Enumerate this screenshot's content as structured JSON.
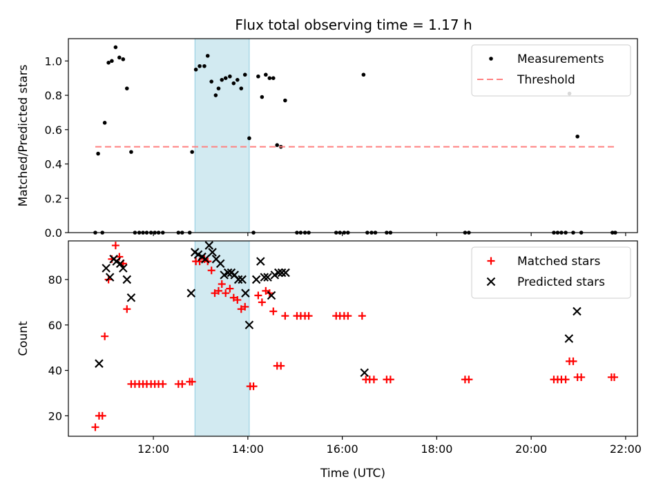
{
  "chart_data": [
    {
      "type": "scatter",
      "title": "Flux total observing time = 1.17 h",
      "ylabel": "Matched/Predicted stars",
      "xlabel": "",
      "x_unit": "hours (UTC)",
      "xlim": [
        10.2,
        22.25
      ],
      "ylim": [
        0.0,
        1.13
      ],
      "yticks": [
        "0.0",
        "0.2",
        "0.4",
        "0.6",
        "0.8",
        "1.0"
      ],
      "legend_position": "top-right",
      "shaded_interval": {
        "start": 12.88,
        "end": 14.03,
        "color": "#add8e6"
      },
      "series": [
        {
          "name": "Measurements",
          "marker": "dot",
          "color": "#000000",
          "points": [
            [
              10.77,
              0.0
            ],
            [
              10.83,
              0.46
            ],
            [
              10.92,
              0.0
            ],
            [
              10.97,
              0.64
            ],
            [
              11.05,
              0.99
            ],
            [
              11.12,
              1.0
            ],
            [
              11.2,
              1.08
            ],
            [
              11.28,
              1.02
            ],
            [
              11.36,
              1.01
            ],
            [
              11.44,
              0.84
            ],
            [
              11.53,
              0.47
            ],
            [
              11.61,
              0.0
            ],
            [
              11.7,
              0.0
            ],
            [
              11.78,
              0.0
            ],
            [
              11.86,
              0.0
            ],
            [
              11.95,
              0.0
            ],
            [
              12.03,
              0.0
            ],
            [
              12.11,
              0.0
            ],
            [
              12.2,
              0.0
            ],
            [
              12.53,
              0.0
            ],
            [
              12.61,
              0.0
            ],
            [
              12.77,
              0.0
            ],
            [
              12.82,
              0.47
            ],
            [
              12.9,
              0.95
            ],
            [
              12.98,
              0.97
            ],
            [
              13.08,
              0.97
            ],
            [
              13.15,
              1.03
            ],
            [
              13.23,
              0.88
            ],
            [
              13.32,
              0.8
            ],
            [
              13.38,
              0.84
            ],
            [
              13.45,
              0.89
            ],
            [
              13.53,
              0.9
            ],
            [
              13.62,
              0.91
            ],
            [
              13.7,
              0.87
            ],
            [
              13.78,
              0.89
            ],
            [
              13.86,
              0.84
            ],
            [
              13.94,
              0.92
            ],
            [
              14.03,
              0.55
            ],
            [
              14.12,
              0.0
            ],
            [
              14.22,
              0.91
            ],
            [
              14.3,
              0.79
            ],
            [
              14.38,
              0.92
            ],
            [
              14.46,
              0.9
            ],
            [
              14.54,
              0.9
            ],
            [
              14.62,
              0.51
            ],
            [
              14.7,
              0.5
            ],
            [
              14.79,
              0.77
            ],
            [
              15.04,
              0.0
            ],
            [
              15.12,
              0.0
            ],
            [
              15.21,
              0.0
            ],
            [
              15.29,
              0.0
            ],
            [
              15.87,
              0.0
            ],
            [
              15.95,
              0.0
            ],
            [
              16.04,
              0.0
            ],
            [
              16.12,
              0.0
            ],
            [
              16.45,
              0.92
            ],
            [
              16.53,
              0.0
            ],
            [
              16.62,
              0.0
            ],
            [
              16.7,
              0.0
            ],
            [
              16.94,
              0.0
            ],
            [
              17.02,
              0.0
            ],
            [
              18.6,
              0.0
            ],
            [
              18.68,
              0.0
            ],
            [
              20.48,
              0.0
            ],
            [
              20.56,
              0.0
            ],
            [
              20.64,
              0.0
            ],
            [
              20.73,
              0.0
            ],
            [
              20.81,
              0.81
            ],
            [
              20.89,
              0.0
            ],
            [
              20.98,
              0.56
            ],
            [
              21.06,
              0.0
            ],
            [
              21.72,
              0.0
            ],
            [
              21.78,
              0.0
            ]
          ]
        },
        {
          "name": "Threshold",
          "marker": "dashed-line",
          "color": "#ff7f7f",
          "points": [
            [
              10.77,
              0.5
            ],
            [
              21.78,
              0.5
            ]
          ]
        }
      ]
    },
    {
      "type": "scatter",
      "title": "",
      "ylabel": "Count",
      "xlabel": "Time (UTC)",
      "x_unit": "hours (UTC)",
      "xlim": [
        10.2,
        22.25
      ],
      "ylim": [
        11,
        97
      ],
      "xticks": [
        "12:00",
        "14:00",
        "16:00",
        "18:00",
        "20:00",
        "22:00"
      ],
      "yticks": [
        "20",
        "40",
        "60",
        "80"
      ],
      "legend_position": "top-right",
      "shaded_interval": {
        "start": 12.88,
        "end": 14.03,
        "color": "#add8e6"
      },
      "series": [
        {
          "name": "Matched stars",
          "marker": "plus",
          "color": "#ff0000",
          "points": [
            [
              10.77,
              15
            ],
            [
              10.85,
              20
            ],
            [
              10.92,
              20
            ],
            [
              10.97,
              55
            ],
            [
              11.05,
              80
            ],
            [
              11.12,
              89
            ],
            [
              11.2,
              95
            ],
            [
              11.28,
              90
            ],
            [
              11.36,
              87
            ],
            [
              11.44,
              67
            ],
            [
              11.53,
              34
            ],
            [
              11.61,
              34
            ],
            [
              11.7,
              34
            ],
            [
              11.78,
              34
            ],
            [
              11.86,
              34
            ],
            [
              11.95,
              34
            ],
            [
              12.03,
              34
            ],
            [
              12.11,
              34
            ],
            [
              12.2,
              34
            ],
            [
              12.53,
              34
            ],
            [
              12.61,
              34
            ],
            [
              12.77,
              35
            ],
            [
              12.82,
              35
            ],
            [
              12.9,
              88
            ],
            [
              12.98,
              88
            ],
            [
              13.08,
              89
            ],
            [
              13.15,
              88
            ],
            [
              13.23,
              84
            ],
            [
              13.3,
              74
            ],
            [
              13.38,
              75
            ],
            [
              13.45,
              78
            ],
            [
              13.53,
              74
            ],
            [
              13.62,
              76
            ],
            [
              13.7,
              72
            ],
            [
              13.78,
              71
            ],
            [
              13.86,
              67
            ],
            [
              13.94,
              68
            ],
            [
              14.05,
              33
            ],
            [
              14.12,
              33
            ],
            [
              14.22,
              73
            ],
            [
              14.3,
              70
            ],
            [
              14.38,
              75
            ],
            [
              14.46,
              74
            ],
            [
              14.54,
              66
            ],
            [
              14.62,
              42
            ],
            [
              14.7,
              42
            ],
            [
              14.79,
              64
            ],
            [
              15.04,
              64
            ],
            [
              15.12,
              64
            ],
            [
              15.21,
              64
            ],
            [
              15.29,
              64
            ],
            [
              15.87,
              64
            ],
            [
              15.95,
              64
            ],
            [
              16.04,
              64
            ],
            [
              16.12,
              64
            ],
            [
              16.42,
              64
            ],
            [
              16.5,
              36
            ],
            [
              16.58,
              36
            ],
            [
              16.67,
              36
            ],
            [
              16.94,
              36
            ],
            [
              17.02,
              36
            ],
            [
              18.6,
              36
            ],
            [
              18.68,
              36
            ],
            [
              20.48,
              36
            ],
            [
              20.56,
              36
            ],
            [
              20.64,
              36
            ],
            [
              20.73,
              36
            ],
            [
              20.81,
              44
            ],
            [
              20.89,
              44
            ],
            [
              20.98,
              37
            ],
            [
              21.06,
              37
            ],
            [
              21.7,
              37
            ],
            [
              21.76,
              37
            ]
          ]
        },
        {
          "name": "Predicted stars",
          "marker": "x",
          "color": "#000000",
          "points": [
            [
              10.85,
              43
            ],
            [
              11.0,
              85
            ],
            [
              11.08,
              81
            ],
            [
              11.16,
              89
            ],
            [
              11.22,
              88
            ],
            [
              11.3,
              87
            ],
            [
              11.36,
              85
            ],
            [
              11.44,
              80
            ],
            [
              11.53,
              72
            ],
            [
              12.8,
              74
            ],
            [
              12.88,
              92
            ],
            [
              12.95,
              91
            ],
            [
              13.03,
              90
            ],
            [
              13.1,
              89
            ],
            [
              13.18,
              95
            ],
            [
              13.25,
              92
            ],
            [
              13.33,
              89
            ],
            [
              13.42,
              87
            ],
            [
              13.5,
              82
            ],
            [
              13.58,
              83
            ],
            [
              13.65,
              83
            ],
            [
              13.72,
              82
            ],
            [
              13.8,
              80
            ],
            [
              13.88,
              80
            ],
            [
              13.95,
              74
            ],
            [
              14.03,
              60
            ],
            [
              14.18,
              80
            ],
            [
              14.27,
              88
            ],
            [
              14.35,
              81
            ],
            [
              14.42,
              81
            ],
            [
              14.5,
              73
            ],
            [
              14.57,
              82
            ],
            [
              14.65,
              83
            ],
            [
              14.72,
              83
            ],
            [
              14.8,
              83
            ],
            [
              16.47,
              39
            ],
            [
              20.8,
              54
            ],
            [
              20.97,
              66
            ]
          ]
        }
      ]
    }
  ]
}
